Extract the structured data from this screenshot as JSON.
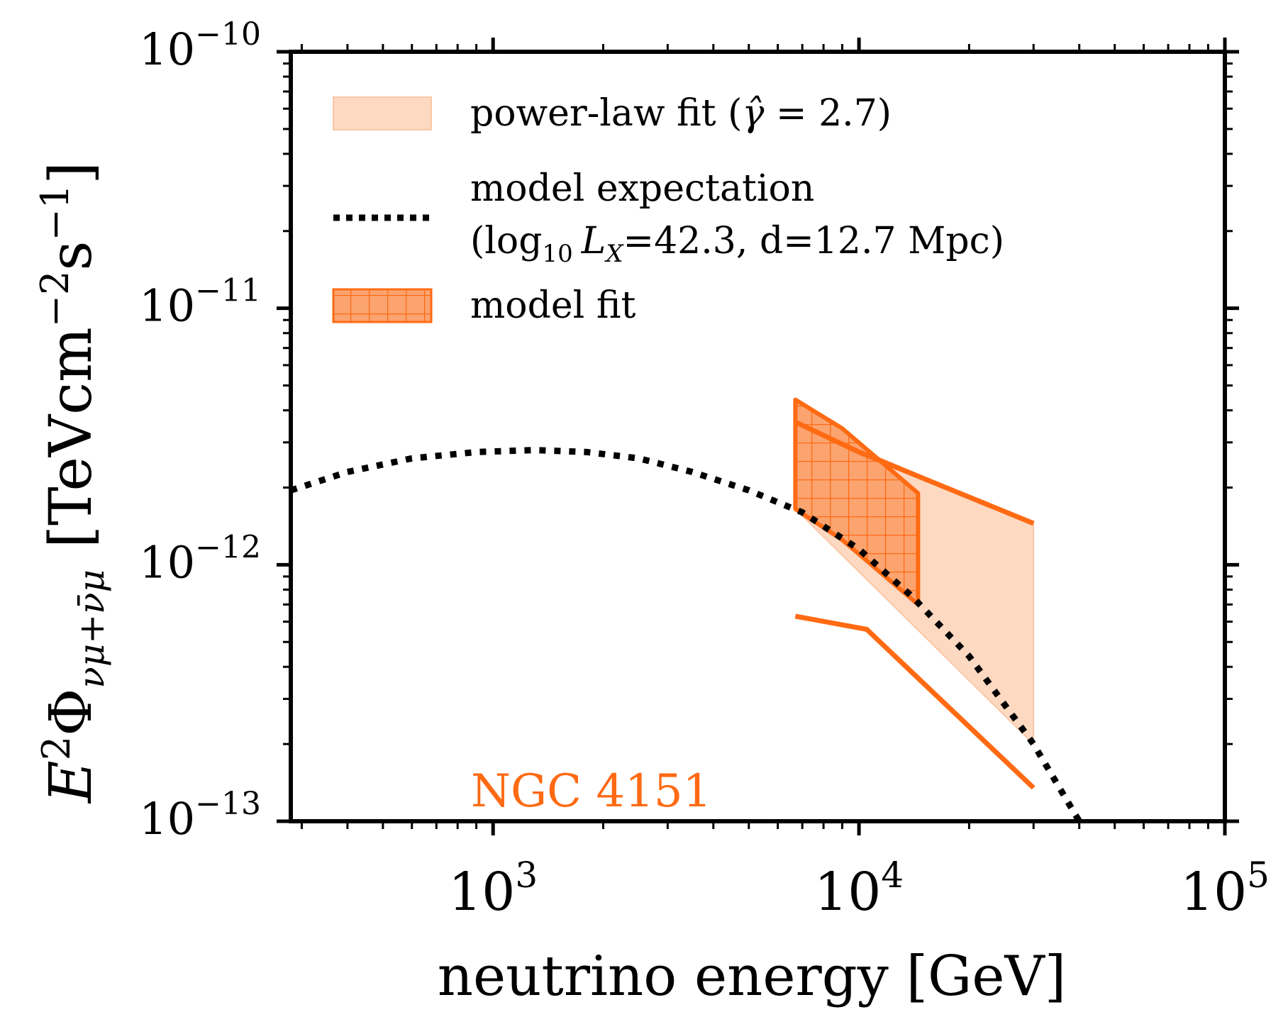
{
  "chart_data": {
    "type": "line",
    "xlabel": "neutrino energy [GeV]",
    "ylabel": {
      "main": "E",
      "main_sup": "2",
      "phi": "Φ",
      "phi_sub": "νμ+ν̄μ",
      "unit_open": "[TeVcm",
      "unit_exp1": "−2",
      "unit_mid": "s",
      "unit_exp2": "−1",
      "unit_close": "]"
    },
    "x_scale": "log",
    "y_scale": "log",
    "xlim": [
      280,
      100000
    ],
    "ylim": [
      1e-13,
      1e-10
    ],
    "x_ticks": [
      {
        "value": 1000,
        "base": "10",
        "exp": "3"
      },
      {
        "value": 10000,
        "base": "10",
        "exp": "4"
      },
      {
        "value": 100000,
        "base": "10",
        "exp": "5"
      }
    ],
    "y_ticks": [
      {
        "value": 1e-13,
        "base": "10",
        "exp": "−13"
      },
      {
        "value": 1e-12,
        "base": "10",
        "exp": "−12"
      },
      {
        "value": 1e-11,
        "base": "10",
        "exp": "−11"
      },
      {
        "value": 1e-10,
        "base": "10",
        "exp": "−10"
      }
    ],
    "grid": false,
    "legend_position": "top-left",
    "annotation": {
      "text": "NGC 4151",
      "color": "#ff6a13",
      "x": 1300,
      "y": 1.3e-13
    },
    "colors": {
      "accent": "#ff6a13",
      "band_fill": "#fdd9c2",
      "hatch_fill": "#fba470",
      "expectation": "#000000"
    },
    "series": [
      {
        "name": "power-law fit (γ̂ = 2.7)",
        "legend_parts": {
          "before": "power-law fit (",
          "symbol": "γ̂",
          "after": " = 2.7)"
        },
        "kind": "band",
        "x": [
          6700,
          30000
        ],
        "upper": [
          3.6e-12,
          1.45e-12
        ],
        "lower": [
          1.65e-12,
          2e-13
        ],
        "edge_upper": {
          "x": [
            6700,
            10000,
            30000
          ],
          "y": [
            3.6e-12,
            2.75e-12,
            1.45e-12
          ]
        },
        "edge_lower": {
          "x": [
            6700,
            10500,
            30000
          ],
          "y": [
            6.3e-13,
            5.6e-13,
            1.35e-13
          ]
        }
      },
      {
        "name": "model expectation",
        "legend_line2": {
          "open": "(log",
          "sub": "10",
          "var": "L",
          "var_sub": "X",
          "rest": "=42.3, d=12.7 Mpc)"
        },
        "kind": "dotted",
        "x": [
          280,
          400,
          600,
          900,
          1300,
          1800,
          2500,
          3500,
          5000,
          7000,
          10000,
          14000,
          20000,
          30000,
          40000
        ],
        "y": [
          1.95e-12,
          2.3e-12,
          2.6e-12,
          2.75e-12,
          2.8e-12,
          2.75e-12,
          2.6e-12,
          2.3e-12,
          1.95e-12,
          1.6e-12,
          1.15e-12,
          7.5e-13,
          4.4e-13,
          2e-13,
          1e-13
        ]
      },
      {
        "name": "model fit",
        "kind": "hatched_band",
        "upper": {
          "x": [
            6700,
            9000,
            14500
          ],
          "y": [
            4.4e-12,
            3.4e-12,
            1.9e-12
          ]
        },
        "lower": {
          "x": [
            6700,
            9000,
            14500
          ],
          "y": [
            1.65e-12,
            1.25e-12,
            7e-13
          ]
        }
      }
    ]
  }
}
